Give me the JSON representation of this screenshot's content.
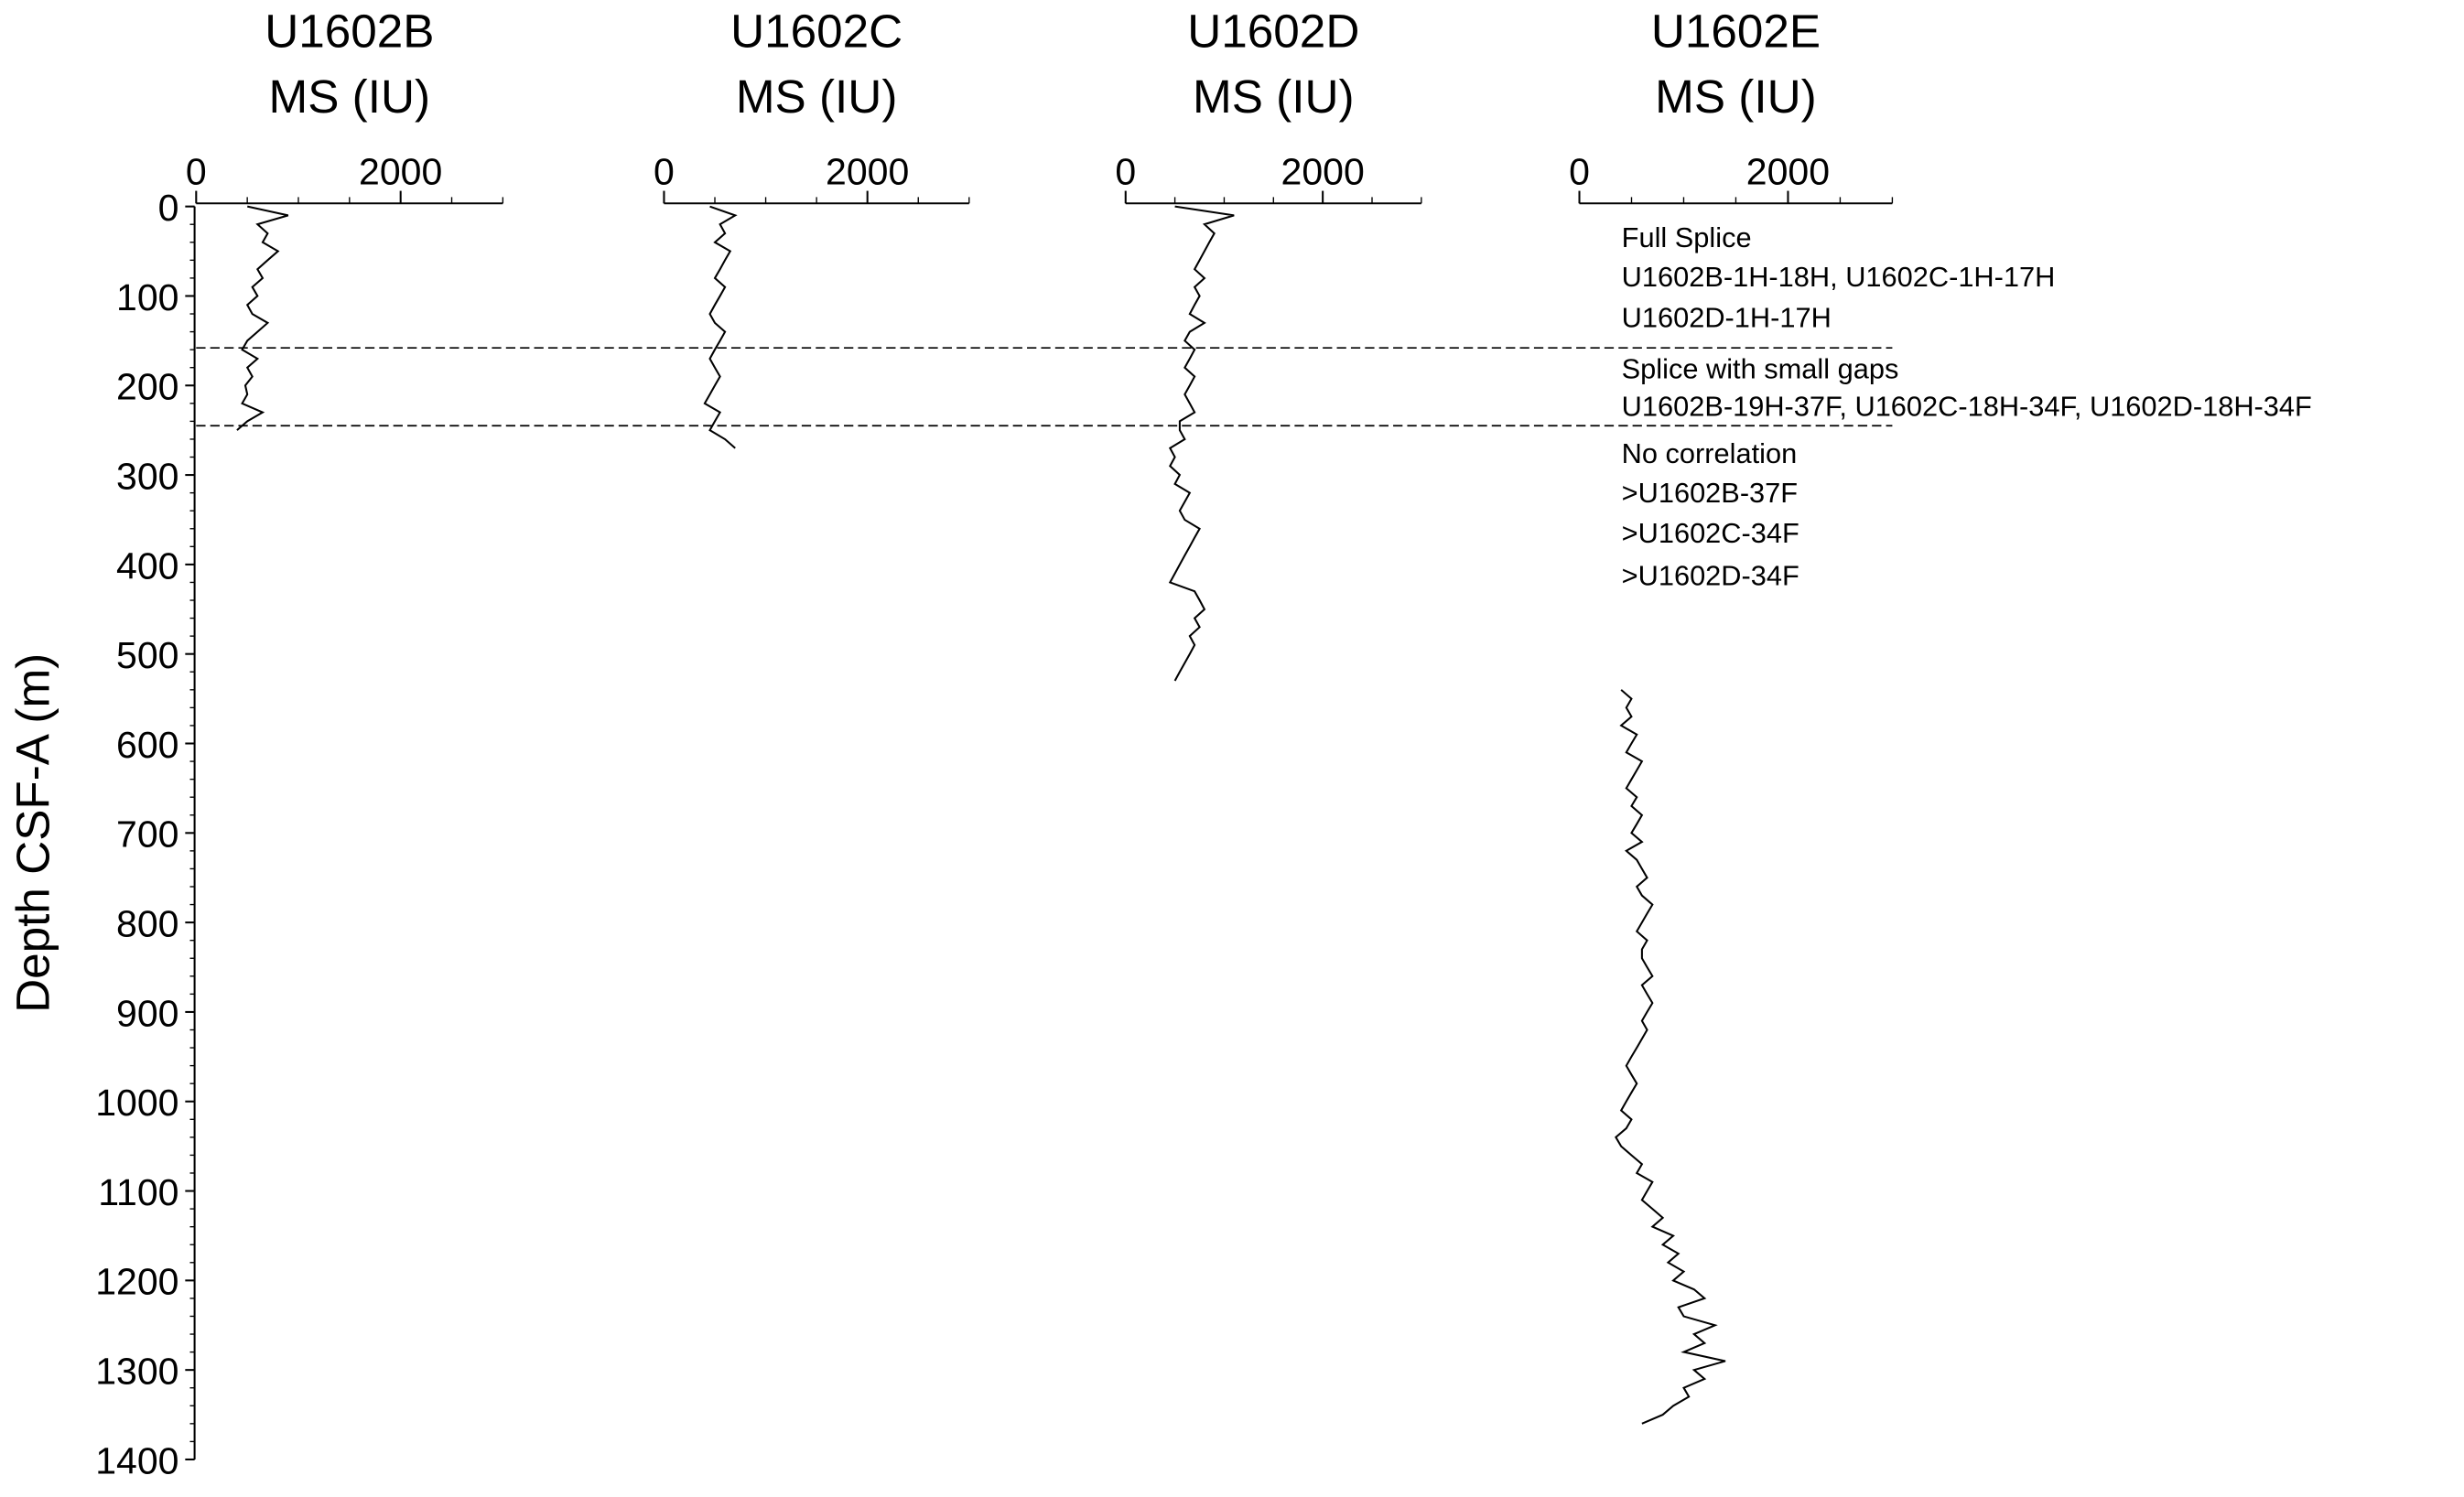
{
  "chart_data": [
    {
      "type": "line",
      "title": "U1602B",
      "xlabel": "MS (IU)",
      "ylabel": "Depth CSF-A (m)",
      "color": "#000000",
      "xlim": [
        0,
        3000
      ],
      "xticks": [
        0,
        2000
      ],
      "ylim": [
        0,
        1400
      ],
      "yticks": [
        0,
        100,
        200,
        300,
        400,
        500,
        600,
        700,
        800,
        900,
        1000,
        1100,
        1200,
        1300,
        1400
      ],
      "depths": [
        0,
        10,
        20,
        30,
        40,
        50,
        60,
        70,
        80,
        90,
        100,
        110,
        120,
        130,
        140,
        150,
        160,
        170,
        180,
        190,
        200,
        210,
        220,
        230,
        240,
        250
      ],
      "values": [
        500,
        900,
        600,
        700,
        650,
        800,
        700,
        600,
        650,
        550,
        600,
        500,
        550,
        700,
        600,
        500,
        450,
        600,
        500,
        550,
        480,
        500,
        450,
        650,
        500,
        400
      ]
    },
    {
      "type": "line",
      "title": "U1602C",
      "xlabel": "MS (IU)",
      "color": "#000000",
      "xlim": [
        0,
        3000
      ],
      "xticks": [
        0,
        2000
      ],
      "depths": [
        0,
        10,
        20,
        30,
        40,
        50,
        60,
        70,
        80,
        90,
        100,
        110,
        120,
        130,
        140,
        150,
        160,
        170,
        180,
        190,
        200,
        210,
        220,
        230,
        240,
        250,
        260,
        270
      ],
      "values": [
        450,
        700,
        550,
        600,
        500,
        650,
        600,
        550,
        500,
        600,
        550,
        500,
        450,
        500,
        600,
        550,
        500,
        450,
        500,
        550,
        500,
        450,
        400,
        550,
        500,
        450,
        600,
        700
      ]
    },
    {
      "type": "line",
      "title": "U1602D",
      "xlabel": "MS (IU)",
      "color": "#000000",
      "xlim": [
        0,
        3000
      ],
      "xticks": [
        0,
        2000
      ],
      "depths": [
        0,
        10,
        20,
        30,
        40,
        50,
        60,
        70,
        80,
        90,
        100,
        110,
        120,
        130,
        140,
        150,
        160,
        170,
        180,
        190,
        200,
        210,
        220,
        230,
        240,
        250,
        260,
        270,
        280,
        290,
        300,
        310,
        320,
        330,
        340,
        350,
        360,
        370,
        380,
        390,
        400,
        410,
        420,
        430,
        440,
        450,
        460,
        470,
        480,
        490,
        500,
        510,
        520,
        530
      ],
      "values": [
        500,
        1100,
        800,
        900,
        850,
        800,
        750,
        700,
        800,
        700,
        750,
        700,
        650,
        800,
        650,
        600,
        700,
        650,
        600,
        700,
        650,
        600,
        650,
        700,
        550,
        550,
        600,
        450,
        500,
        450,
        550,
        500,
        650,
        600,
        550,
        600,
        750,
        700,
        650,
        600,
        550,
        500,
        450,
        700,
        750,
        800,
        700,
        750,
        650,
        700,
        650,
        600,
        550,
        500
      ]
    },
    {
      "type": "line",
      "title": "U1602E",
      "xlabel": "MS (IU)",
      "color": "#000000",
      "xlim": [
        0,
        3000
      ],
      "xticks": [
        0,
        2000
      ],
      "depths": [
        540,
        550,
        560,
        570,
        580,
        590,
        600,
        610,
        620,
        630,
        640,
        650,
        660,
        670,
        680,
        690,
        700,
        710,
        720,
        730,
        740,
        750,
        760,
        770,
        780,
        790,
        800,
        810,
        820,
        830,
        840,
        850,
        860,
        870,
        880,
        890,
        900,
        910,
        920,
        930,
        940,
        950,
        960,
        970,
        980,
        990,
        1000,
        1010,
        1020,
        1030,
        1040,
        1050,
        1060,
        1070,
        1080,
        1090,
        1100,
        1110,
        1120,
        1130,
        1140,
        1150,
        1160,
        1170,
        1180,
        1190,
        1200,
        1210,
        1220,
        1230,
        1240,
        1250,
        1260,
        1270,
        1280,
        1290,
        1300,
        1310,
        1320,
        1330,
        1340,
        1350,
        1360
      ],
      "values": [
        400,
        500,
        450,
        500,
        400,
        550,
        500,
        450,
        600,
        550,
        500,
        450,
        550,
        500,
        600,
        550,
        500,
        600,
        450,
        550,
        600,
        650,
        550,
        600,
        700,
        650,
        600,
        550,
        650,
        600,
        600,
        650,
        700,
        600,
        650,
        700,
        650,
        600,
        650,
        600,
        550,
        500,
        450,
        500,
        550,
        500,
        450,
        400,
        500,
        450,
        350,
        400,
        500,
        600,
        550,
        700,
        650,
        600,
        700,
        800,
        700,
        900,
        800,
        950,
        850,
        1000,
        900,
        1100,
        1200,
        950,
        1000,
        1300,
        1100,
        1200,
        1000,
        1400,
        1100,
        1200,
        1000,
        1050,
        900,
        800,
        600
      ]
    }
  ],
  "splice_boundaries": [
    158,
    245
  ],
  "annotations": [
    "Full Splice",
    "U1602B-1H-18H, U1602C-1H-17H",
    "U1602D-1H-17H",
    "Splice with small gaps",
    "U1602B-19H-37F, U1602C-18H-34F, U1602D-18H-34F",
    "No correlation",
    ">U1602B-37F",
    ">U1602C-34F",
    ">U1602D-34F"
  ]
}
